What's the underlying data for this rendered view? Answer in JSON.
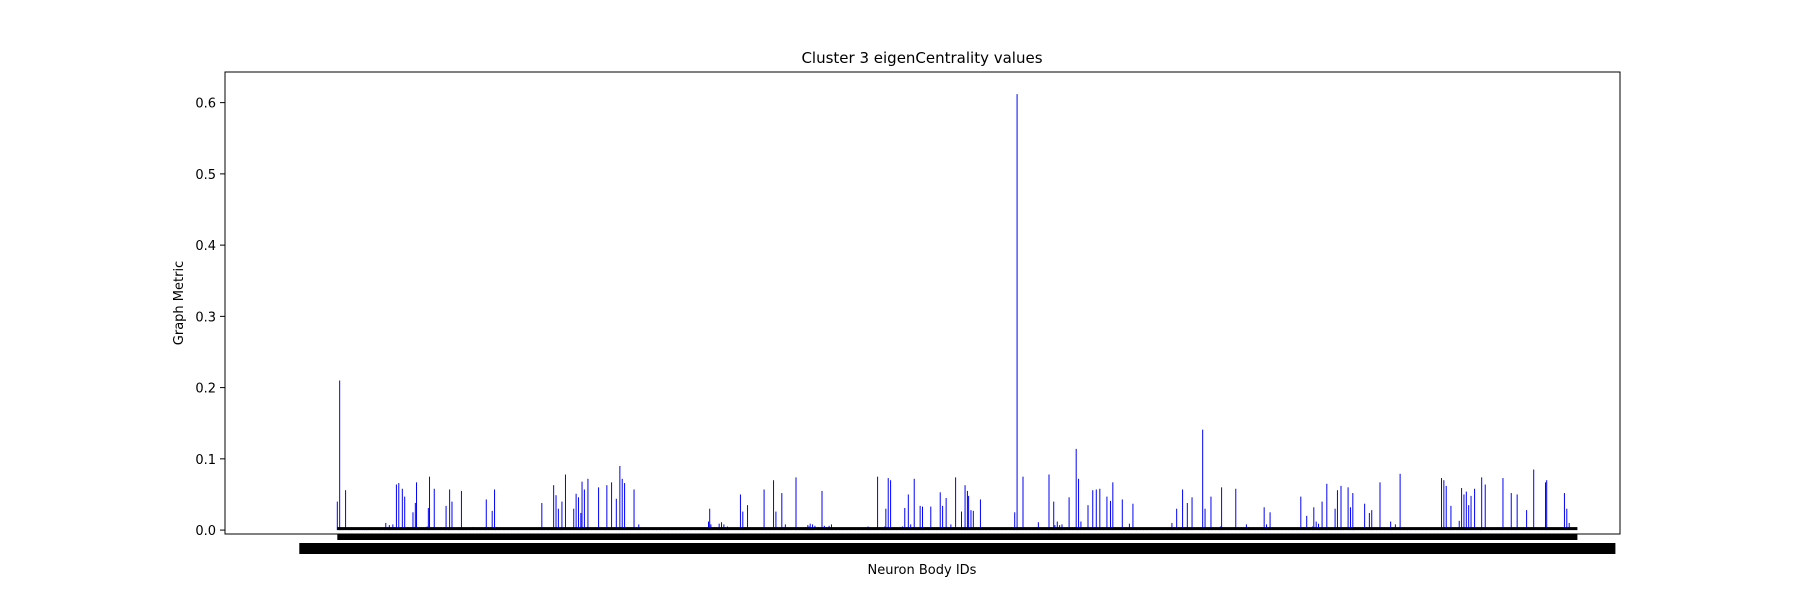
{
  "chart_data": {
    "type": "bar",
    "title": "Cluster 3 eigenCentrality values",
    "xlabel": "Neuron Body IDs",
    "ylabel": "Graph Metric",
    "ylim": [
      -0.0055,
      0.643
    ],
    "xlim": [
      -95,
      1085
    ],
    "yticks": [
      0.0,
      0.1,
      0.2,
      0.3,
      0.4,
      0.5,
      0.6
    ],
    "ytick_labels": [
      "0.0",
      "0.1",
      "0.2",
      "0.3",
      "0.4",
      "0.5",
      "0.6"
    ],
    "bar_color": "#0000ff",
    "category_count": 1000,
    "x_tick_labels_note": "1000 overlapping neuron body ID tick labels rendered as an illegible black band",
    "values": [
      0.04,
      0.0,
      0.21,
      0.002,
      0.001,
      0.003,
      0.0,
      0.056,
      0.0,
      0.002,
      0.001,
      0.0,
      0.001,
      0.0,
      0.002,
      0.0,
      0.001,
      0.0,
      0.0,
      0.002,
      0.0,
      0.001,
      0.0,
      0.003,
      0.0,
      0.002,
      0.001,
      0.0,
      0.0,
      0.002,
      0.0,
      0.0,
      0.001,
      0.0,
      0.0,
      0.002,
      0.0,
      0.001,
      0.0,
      0.0,
      0.002,
      0.01,
      0.0,
      0.004,
      0.007,
      0.001,
      0.0,
      0.008,
      0.0,
      0.001,
      0.064,
      0.0,
      0.066,
      0.0,
      0.003,
      0.058,
      0.0,
      0.047,
      0.0,
      0.001,
      0.0,
      0.002,
      0.0,
      0.0,
      0.025,
      0.0,
      0.038,
      0.067,
      0.001,
      0.0,
      0.002,
      0.0,
      0.0,
      0.0,
      0.002,
      0.0,
      0.005,
      0.031,
      0.075,
      0.0,
      0.001,
      0.0,
      0.058,
      0.0,
      0.002,
      0.0,
      0.0,
      0.002,
      0.0,
      0.0,
      0.0,
      0.002,
      0.034,
      0.0,
      0.001,
      0.057,
      0.0,
      0.04,
      0.0,
      0.002,
      0.0,
      0.0,
      0.001,
      0.004,
      0.0,
      0.055,
      0.0,
      0.002,
      0.0,
      0.001,
      0.0,
      0.0,
      0.002,
      0.0,
      0.0,
      0.004,
      0.0,
      0.0,
      0.001,
      0.0,
      0.0,
      0.002,
      0.0,
      0.0,
      0.0,
      0.001,
      0.043,
      0.0,
      0.002,
      0.0,
      0.0,
      0.027,
      0.0,
      0.057,
      0.002,
      0.0,
      0.0,
      0.001,
      0.0,
      0.0,
      0.0,
      0.002,
      0.0,
      0.0,
      0.001,
      0.0,
      0.0,
      0.002,
      0.0,
      0.0,
      0.001,
      0.0,
      0.0,
      0.002,
      0.0,
      0.0,
      0.0,
      0.001,
      0.0,
      0.0,
      0.002,
      0.0,
      0.0,
      0.001,
      0.0,
      0.0,
      0.002,
      0.0,
      0.0,
      0.0,
      0.001,
      0.0,
      0.0,
      0.038,
      0.0,
      0.002,
      0.0,
      0.0,
      0.001,
      0.0,
      0.0,
      0.002,
      0.0,
      0.063,
      0.0,
      0.049,
      0.0,
      0.03,
      0.0,
      0.002,
      0.04,
      0.0,
      0.0,
      0.078,
      0.0,
      0.001,
      0.0,
      0.002,
      0.0,
      0.0,
      0.03,
      0.0,
      0.051,
      0.0,
      0.046,
      0.0,
      0.024,
      0.068,
      0.0,
      0.057,
      0.0,
      0.002,
      0.072,
      0.0,
      0.0,
      0.002,
      0.0,
      0.0,
      0.001,
      0.0,
      0.0,
      0.06,
      0.0,
      0.002,
      0.0,
      0.0,
      0.001,
      0.0,
      0.063,
      0.0,
      0.002,
      0.0,
      0.067,
      0.0,
      0.001,
      0.0,
      0.044,
      0.0,
      0.002,
      0.09,
      0.0,
      0.072,
      0.0,
      0.066,
      0.0,
      0.002,
      0.0,
      0.0,
      0.001,
      0.0,
      0.0,
      0.057,
      0.0,
      0.002,
      0.0,
      0.008,
      0.0,
      0.001,
      0.0,
      0.0,
      0.002,
      0.0,
      0.0,
      0.001,
      0.0,
      0.0,
      0.0,
      0.002,
      0.0,
      0.0,
      0.001,
      0.0,
      0.0,
      0.002,
      0.0,
      0.0,
      0.0,
      0.001,
      0.0,
      0.0,
      0.002,
      0.0,
      0.0,
      0.001,
      0.0,
      0.0,
      0.002,
      0.0,
      0.0,
      0.0,
      0.001,
      0.0,
      0.0,
      0.002,
      0.0,
      0.0,
      0.001,
      0.0,
      0.0,
      0.002,
      0.0,
      0.0,
      0.0,
      0.001,
      0.0,
      0.0,
      0.002,
      0.0,
      0.0,
      0.001,
      0.0,
      0.0,
      0.002,
      0.0,
      0.012,
      0.03,
      0.008,
      0.001,
      0.0,
      0.004,
      0.0,
      0.0,
      0.002,
      0.009,
      0.0,
      0.011,
      0.0,
      0.008,
      0.0,
      0.002,
      0.005,
      0.0,
      0.0,
      0.002,
      0.0,
      0.0,
      0.001,
      0.0,
      0.0,
      0.002,
      0.0,
      0.05,
      0.0,
      0.026,
      0.0,
      0.001,
      0.0,
      0.035,
      0.0,
      0.002,
      0.0,
      0.0,
      0.001,
      0.0,
      0.0,
      0.002,
      0.0,
      0.0,
      0.0,
      0.001,
      0.0,
      0.057,
      0.0,
      0.002,
      0.0,
      0.0,
      0.001,
      0.0,
      0.0,
      0.07,
      0.0,
      0.026,
      0.0,
      0.0,
      0.001,
      0.0,
      0.052,
      0.0,
      0.002,
      0.008,
      0.0,
      0.001,
      0.0,
      0.0,
      0.002,
      0.0,
      0.0,
      0.0,
      0.074,
      0.0,
      0.0,
      0.002,
      0.0,
      0.0,
      0.001,
      0.0,
      0.004,
      0.002,
      0.007,
      0.005,
      0.009,
      0.001,
      0.008,
      0.0,
      0.006,
      0.0,
      0.0,
      0.004,
      0.0,
      0.0,
      0.055,
      0.0,
      0.006,
      0.0,
      0.004,
      0.001,
      0.006,
      0.0,
      0.008,
      0.002,
      0.0,
      0.0,
      0.001,
      0.0,
      0.0,
      0.002,
      0.0,
      0.0,
      0.001,
      0.0,
      0.0,
      0.002,
      0.0,
      0.0,
      0.0,
      0.001,
      0.0,
      0.0,
      0.002,
      0.0,
      0.0,
      0.001,
      0.0,
      0.0,
      0.002,
      0.0,
      0.0,
      0.0,
      0.001,
      0.005,
      0.0,
      0.002,
      0.0,
      0.0,
      0.001,
      0.0,
      0.0,
      0.075,
      0.0,
      0.0,
      0.0,
      0.001,
      0.0,
      0.005,
      0.03,
      0.0,
      0.073,
      0.0,
      0.07,
      0.0,
      0.002,
      0.0,
      0.0,
      0.001,
      0.0,
      0.0,
      0.002,
      0.0,
      0.005,
      0.0,
      0.031,
      0.0,
      0.0,
      0.05,
      0.0,
      0.008,
      0.0,
      0.0,
      0.072,
      0.0,
      0.001,
      0.002,
      0.0,
      0.034,
      0.0,
      0.033,
      0.0,
      0.001,
      0.0,
      0.0,
      0.002,
      0.0,
      0.033,
      0.0,
      0.002,
      0.0,
      0.0,
      0.001,
      0.0,
      0.0,
      0.053,
      0.0,
      0.034,
      0.0,
      0.002,
      0.045,
      0.0,
      0.001,
      0.0,
      0.008,
      0.002,
      0.0,
      0.0,
      0.074,
      0.0,
      0.001,
      0.0,
      0.0,
      0.026,
      0.0,
      0.002,
      0.063,
      0.0,
      0.055,
      0.048,
      0.0,
      0.028,
      0.0,
      0.027,
      0.0,
      0.002,
      0.0,
      0.0,
      0.001,
      0.043,
      0.0,
      0.002,
      0.0,
      0.0,
      0.001,
      0.0,
      0.0,
      0.002,
      0.0,
      0.0,
      0.0,
      0.001,
      0.0,
      0.0,
      0.002,
      0.0,
      0.0,
      0.001,
      0.0,
      0.0,
      0.002,
      0.0,
      0.0,
      0.0,
      0.001,
      0.0,
      0.0,
      0.002,
      0.025,
      0.0,
      0.612,
      0.0,
      0.002,
      0.0,
      0.0,
      0.075,
      0.0,
      0.0,
      0.002,
      0.0,
      0.0,
      0.001,
      0.0,
      0.0,
      0.002,
      0.0,
      0.0,
      0.0,
      0.011,
      0.0,
      0.0,
      0.002,
      0.0,
      0.0,
      0.001,
      0.0,
      0.0,
      0.078,
      0.0,
      0.0,
      0.0,
      0.04,
      0.007,
      0.0,
      0.012,
      0.0,
      0.007,
      0.001,
      0.008,
      0.0,
      0.002,
      0.0,
      0.0,
      0.0,
      0.046,
      0.0,
      0.0,
      0.002,
      0.0,
      0.0,
      0.114,
      0.0,
      0.072,
      0.0,
      0.012,
      0.0,
      0.0,
      0.001,
      0.0,
      0.0,
      0.035,
      0.0,
      0.002,
      0.0,
      0.056,
      0.001,
      0.0,
      0.057,
      0.0,
      0.0,
      0.058,
      0.0,
      0.0,
      0.002,
      0.0,
      0.0,
      0.047,
      0.0,
      0.0,
      0.041,
      0.0,
      0.067,
      0.0,
      0.001,
      0.0,
      0.0,
      0.002,
      0.0,
      0.0,
      0.043,
      0.0,
      0.0,
      0.001,
      0.0,
      0.0,
      0.009,
      0.0,
      0.0,
      0.037,
      0.0,
      0.0,
      0.001,
      0.0,
      0.0,
      0.002,
      0.0,
      0.0,
      0.001,
      0.0,
      0.0,
      0.002,
      0.0,
      0.0,
      0.0,
      0.001,
      0.0,
      0.0,
      0.002,
      0.0,
      0.0,
      0.001,
      0.0,
      0.0,
      0.002,
      0.0,
      0.0,
      0.0,
      0.001,
      0.0,
      0.0,
      0.002,
      0.01,
      0.0,
      0.001,
      0.0,
      0.03,
      0.002,
      0.0,
      0.0,
      0.0,
      0.057,
      0.0,
      0.0,
      0.002,
      0.038,
      0.0,
      0.001,
      0.0,
      0.046,
      0.0,
      0.0,
      0.0,
      0.0,
      0.0,
      0.0,
      0.002,
      0.0,
      0.141,
      0.0,
      0.03,
      0.0,
      0.0,
      0.002,
      0.0,
      0.047,
      0.001,
      0.0,
      0.0,
      0.002,
      0.0,
      0.0,
      0.001,
      0.005,
      0.06,
      0.0,
      0.002,
      0.0,
      0.0,
      0.001,
      0.0,
      0.0,
      0.002,
      0.0,
      0.0,
      0.0,
      0.058,
      0.0,
      0.0,
      0.002,
      0.0,
      0.0,
      0.001,
      0.0,
      0.0,
      0.008,
      0.0,
      0.004,
      0.0,
      0.001,
      0.0,
      0.0,
      0.002,
      0.0,
      0.0,
      0.001,
      0.0,
      0.0,
      0.002,
      0.0,
      0.032,
      0.0,
      0.008,
      0.0,
      0.0,
      0.025,
      0.0,
      0.0,
      0.001,
      0.0,
      0.0,
      0.002,
      0.0,
      0.0,
      0.0,
      0.001,
      0.0,
      0.0,
      0.002,
      0.0,
      0.0,
      0.001,
      0.0,
      0.0,
      0.002,
      0.0,
      0.0,
      0.0,
      0.001,
      0.0,
      0.0,
      0.047,
      0.0,
      0.0,
      0.001,
      0.0,
      0.02,
      0.0,
      0.002,
      0.0,
      0.0,
      0.005,
      0.032,
      0.0,
      0.012,
      0.0,
      0.009,
      0.002,
      0.0,
      0.04,
      0.0,
      0.0,
      0.002,
      0.065,
      0.0,
      0.0,
      0.0,
      0.001,
      0.0,
      0.0,
      0.03,
      0.0,
      0.056,
      0.0,
      0.0,
      0.062,
      0.0,
      0.002,
      0.0,
      0.0,
      0.0,
      0.06,
      0.0,
      0.032,
      0.0,
      0.052,
      0.001,
      0.0,
      0.0,
      0.002,
      0.0,
      0.0,
      0.001,
      0.0,
      0.0,
      0.037,
      0.0,
      0.0,
      0.0,
      0.024,
      0.0,
      0.028,
      0.002,
      0.0,
      0.0,
      0.001,
      0.0,
      0.0,
      0.067,
      0.0,
      0.0,
      0.0,
      0.001,
      0.0,
      0.0,
      0.002,
      0.0,
      0.012,
      0.001,
      0.0,
      0.0,
      0.008,
      0.0,
      0.0,
      0.0,
      0.079,
      0.0,
      0.0,
      0.002,
      0.0,
      0.0,
      0.001,
      0.0,
      0.0,
      0.002,
      0.0,
      0.0,
      0.0,
      0.001,
      0.0,
      0.0,
      0.002,
      0.0,
      0.0,
      0.001,
      0.0,
      0.0,
      0.002,
      0.0,
      0.0,
      0.0,
      0.001,
      0.0,
      0.0,
      0.002,
      0.0,
      0.0,
      0.001,
      0.0,
      0.0,
      0.073,
      0.0,
      0.07,
      0.0,
      0.062,
      0.0,
      0.0,
      0.002,
      0.034,
      0.0,
      0.001,
      0.0,
      0.0,
      0.002,
      0.0,
      0.013,
      0.0,
      0.059,
      0.0,
      0.05,
      0.002,
      0.054,
      0.0,
      0.035,
      0.0,
      0.048,
      0.0,
      0.0,
      0.058,
      0.0,
      0.001,
      0.0,
      0.0,
      0.002,
      0.074,
      0.0,
      0.0,
      0.064,
      0.0,
      0.0,
      0.002,
      0.0,
      0.0,
      0.001,
      0.0,
      0.0,
      0.002,
      0.0,
      0.0,
      0.0,
      0.001,
      0.0,
      0.073,
      0.0,
      0.0,
      0.0,
      0.001,
      0.0,
      0.0,
      0.052,
      0.0,
      0.0,
      0.001,
      0.0,
      0.05,
      0.0,
      0.0,
      0.0,
      0.0,
      0.001,
      0.0,
      0.0,
      0.028,
      0.0,
      0.0,
      0.001,
      0.0,
      0.0,
      0.085,
      0.0,
      0.0,
      0.0,
      0.001,
      0.0,
      0.0,
      0.002,
      0.0,
      0.0,
      0.067,
      0.07,
      0.0,
      0.002,
      0.0,
      0.0,
      0.0,
      0.001,
      0.0,
      0.0,
      0.002,
      0.0,
      0.0,
      0.001,
      0.0,
      0.0,
      0.052,
      0.0,
      0.03,
      0.0,
      0.01,
      0.0,
      0.0,
      0.002,
      0.0,
      0.0,
      0.001,
      0.0
    ]
  }
}
